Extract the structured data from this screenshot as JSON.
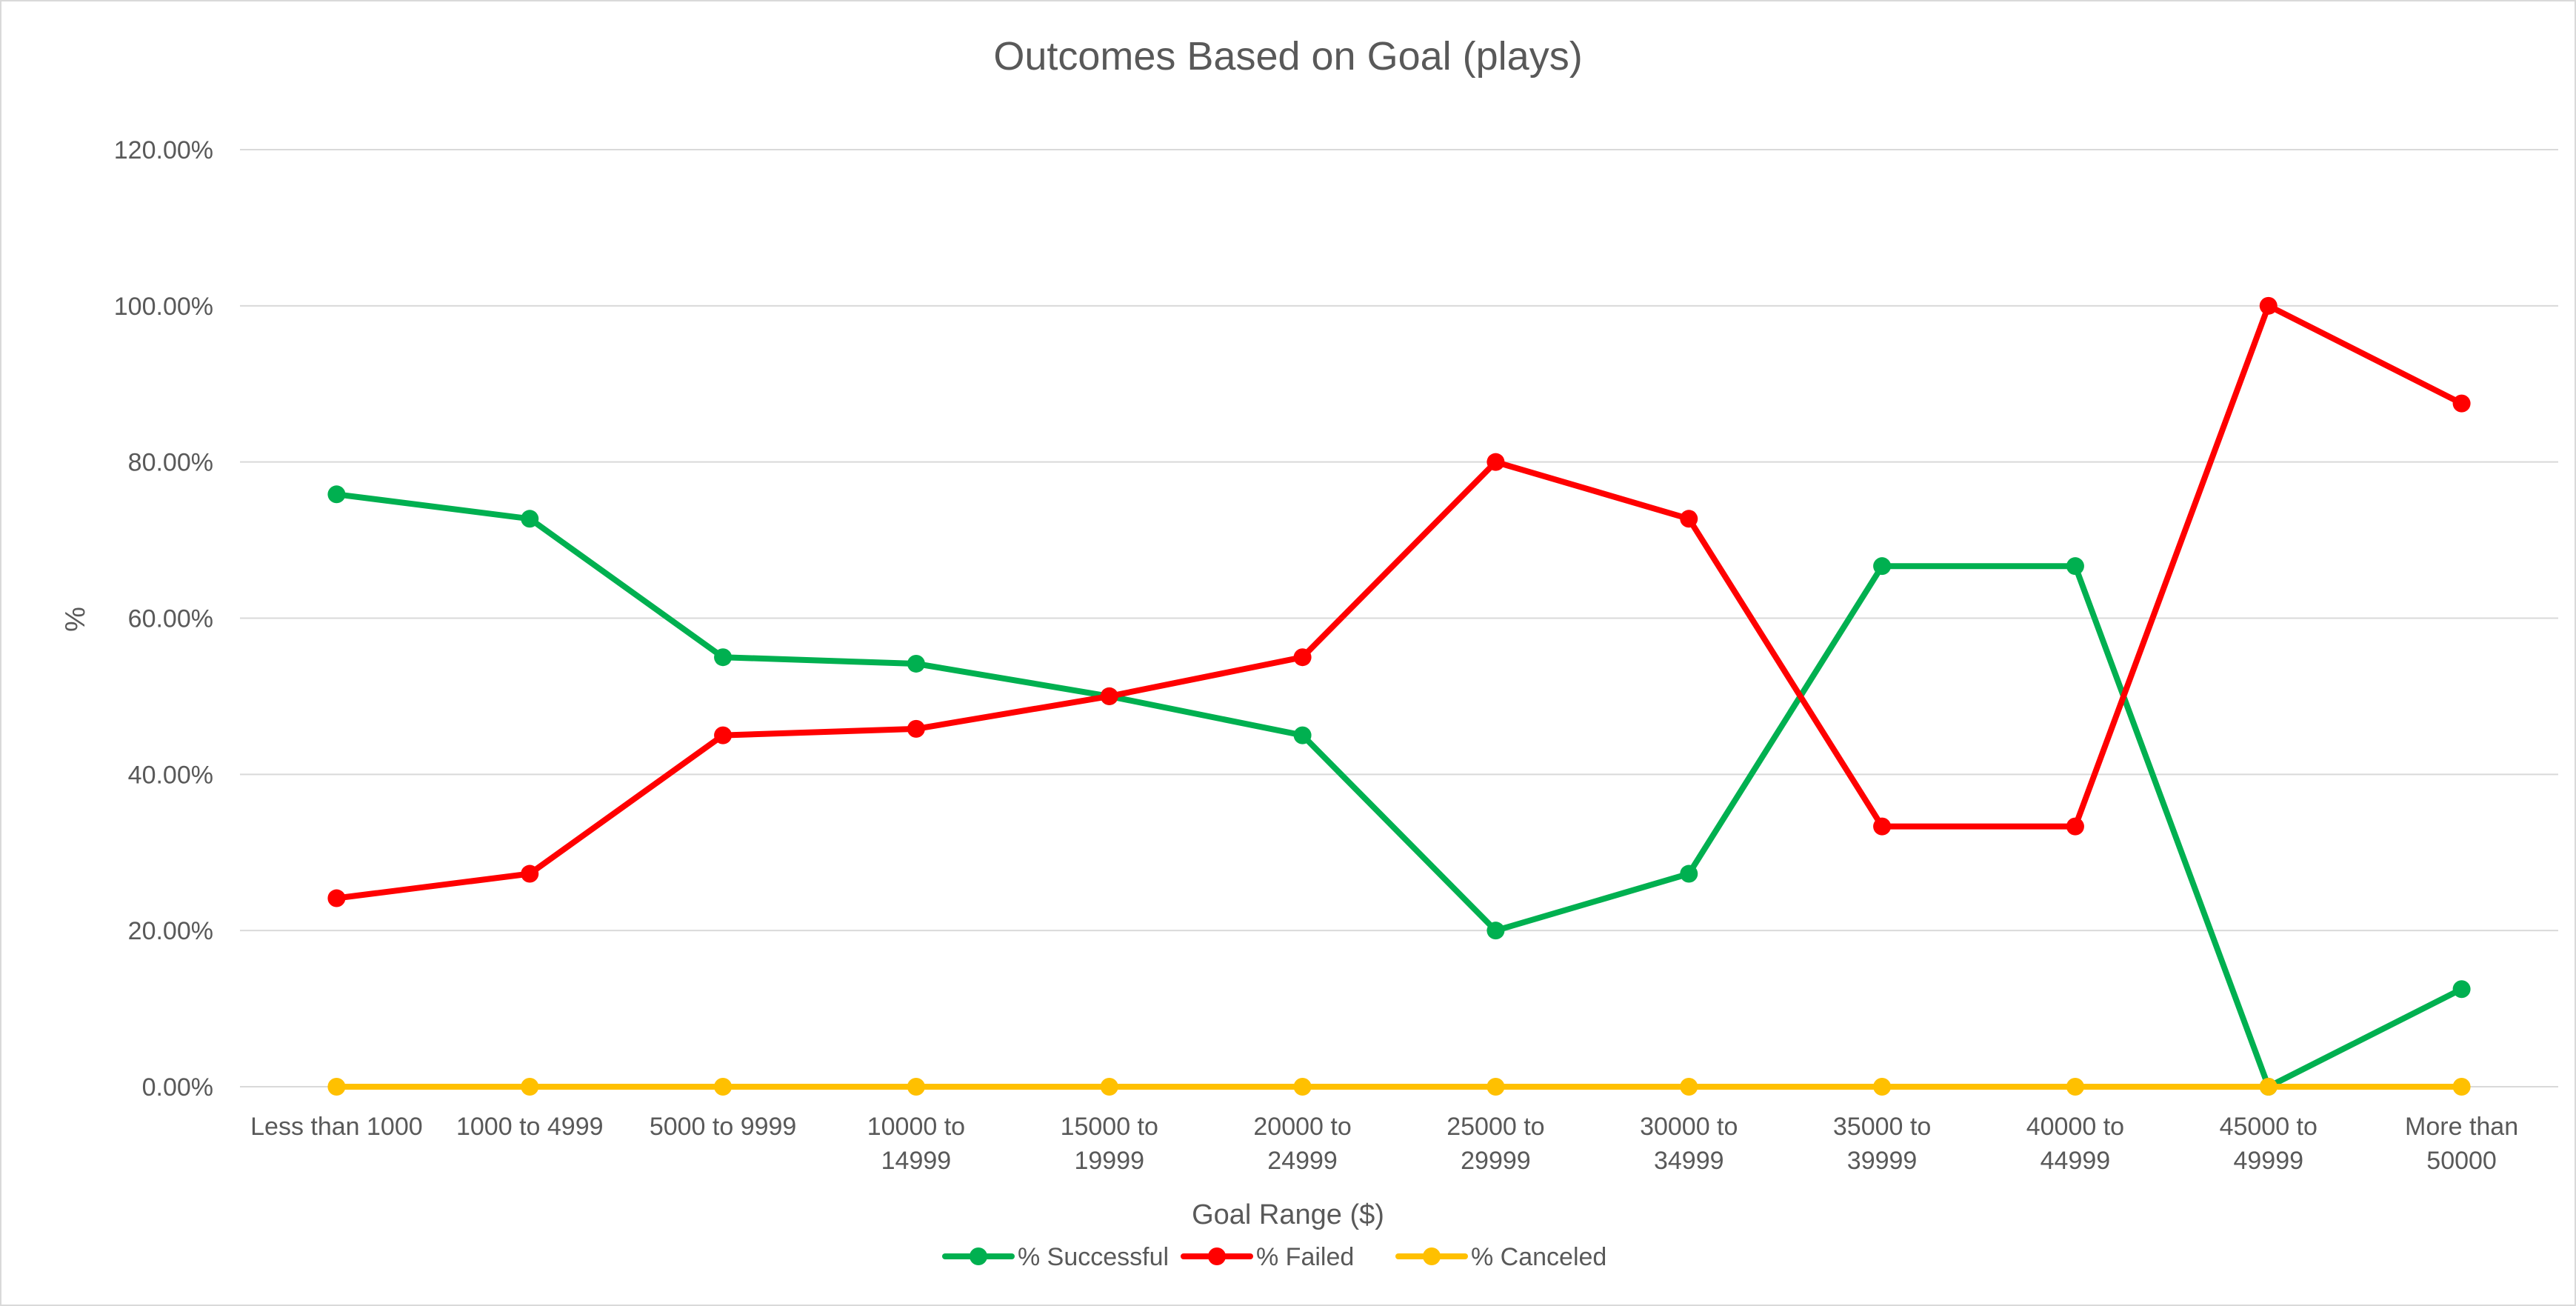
{
  "chart_data": {
    "type": "line",
    "title": "Outcomes Based on Goal (plays)",
    "xlabel": "Goal Range ($)",
    "ylabel": "%",
    "ylim": [
      0,
      1.2
    ],
    "y_ticks": [
      0,
      0.2,
      0.4,
      0.6,
      0.8,
      1.0,
      1.2
    ],
    "y_tick_labels": [
      "0.00%",
      "20.00%",
      "40.00%",
      "60.00%",
      "80.00%",
      "100.00%",
      "120.00%"
    ],
    "grid": true,
    "legend_position": "bottom",
    "categories": [
      [
        "Less than 1000"
      ],
      [
        "1000 to 4999"
      ],
      [
        "5000 to 9999"
      ],
      [
        "10000 to",
        "14999"
      ],
      [
        "15000 to",
        "19999"
      ],
      [
        "20000 to",
        "24999"
      ],
      [
        "25000 to",
        "29999"
      ],
      [
        "30000 to",
        "34999"
      ],
      [
        "35000 to",
        "39999"
      ],
      [
        "40000 to",
        "44999"
      ],
      [
        "45000 to",
        "49999"
      ],
      [
        "More than",
        "50000"
      ]
    ],
    "series": [
      {
        "name": "% Successful",
        "color": "#00b050",
        "values": [
          0.7586,
          0.7273,
          0.55,
          0.5417,
          0.5,
          0.45,
          0.2,
          0.2727,
          0.6667,
          0.6667,
          0.0,
          0.125
        ]
      },
      {
        "name": "% Failed",
        "color": "#ff0000",
        "values": [
          0.2414,
          0.2727,
          0.45,
          0.4583,
          0.5,
          0.55,
          0.8,
          0.7273,
          0.3333,
          0.3333,
          1.0,
          0.875
        ]
      },
      {
        "name": "% Canceled",
        "color": "#ffc000",
        "values": [
          0,
          0,
          0,
          0,
          0,
          0,
          0,
          0,
          0,
          0,
          0,
          0
        ]
      }
    ]
  }
}
